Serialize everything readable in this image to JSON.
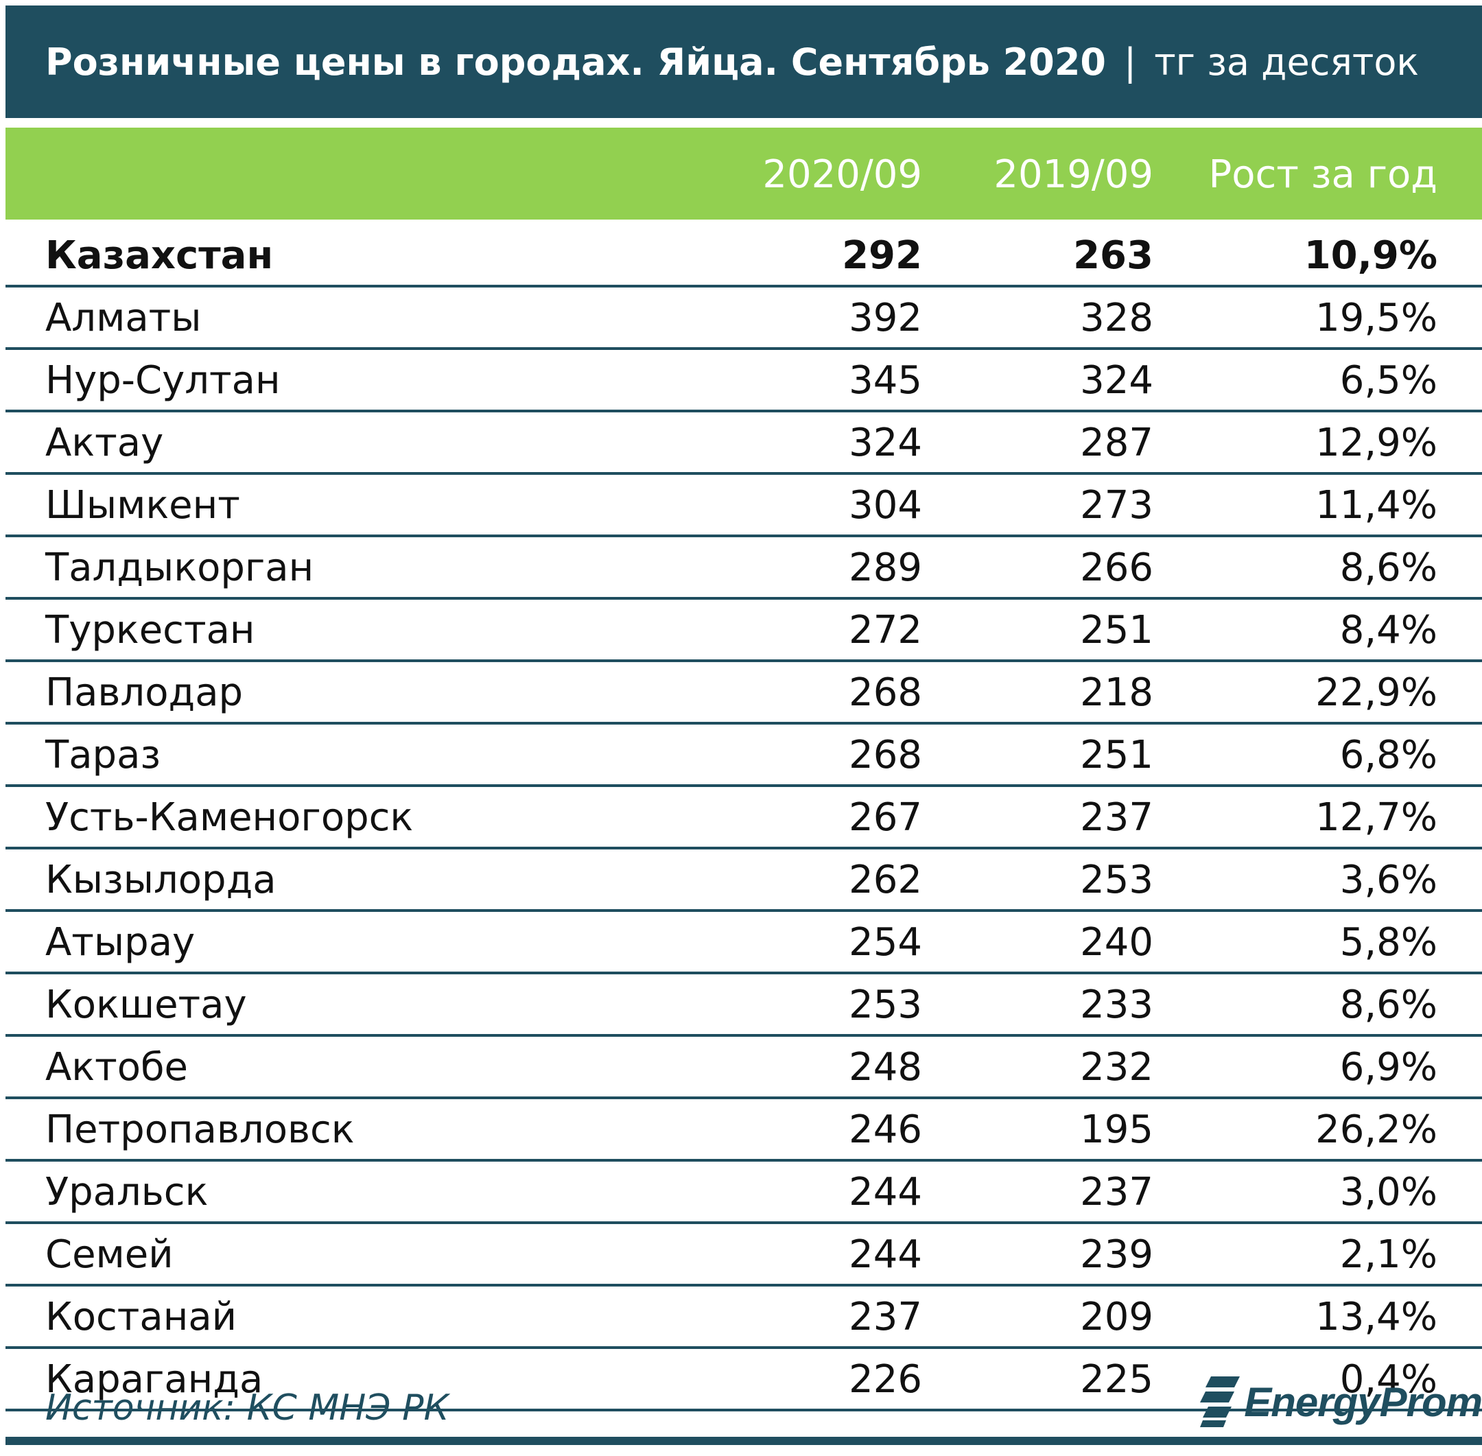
{
  "title": {
    "main": "Розничные цены в городах. Яйца. Сентябрь 2020",
    "separator": "|",
    "unit": "тг за десяток"
  },
  "chart_data": {
    "type": "table",
    "columns": [
      "",
      "2020/09",
      "2019/09",
      "Рост за год"
    ],
    "rows": [
      {
        "city": "Казахстан",
        "v2020": "292",
        "v2019": "263",
        "growth": "10,9%",
        "bold": true
      },
      {
        "city": "Алматы",
        "v2020": "392",
        "v2019": "328",
        "growth": "19,5%"
      },
      {
        "city": "Нур-Султан",
        "v2020": "345",
        "v2019": "324",
        "growth": "6,5%"
      },
      {
        "city": "Актау",
        "v2020": "324",
        "v2019": "287",
        "growth": "12,9%"
      },
      {
        "city": "Шымкент",
        "v2020": "304",
        "v2019": "273",
        "growth": "11,4%"
      },
      {
        "city": "Талдыкорган",
        "v2020": "289",
        "v2019": "266",
        "growth": "8,6%"
      },
      {
        "city": "Туркестан",
        "v2020": "272",
        "v2019": "251",
        "growth": "8,4%"
      },
      {
        "city": "Павлодар",
        "v2020": "268",
        "v2019": "218",
        "growth": "22,9%"
      },
      {
        "city": "Тараз",
        "v2020": "268",
        "v2019": "251",
        "growth": "6,8%"
      },
      {
        "city": "Усть-Каменогорск",
        "v2020": "267",
        "v2019": "237",
        "growth": "12,7%"
      },
      {
        "city": "Кызылорда",
        "v2020": "262",
        "v2019": "253",
        "growth": "3,6%"
      },
      {
        "city": "Атырау",
        "v2020": "254",
        "v2019": "240",
        "growth": "5,8%"
      },
      {
        "city": "Кокшетау",
        "v2020": "253",
        "v2019": "233",
        "growth": "8,6%"
      },
      {
        "city": "Актобе",
        "v2020": "248",
        "v2019": "232",
        "growth": "6,9%"
      },
      {
        "city": "Петропавловск",
        "v2020": "246",
        "v2019": "195",
        "growth": "26,2%"
      },
      {
        "city": "Уральск",
        "v2020": "244",
        "v2019": "237",
        "growth": "3,0%"
      },
      {
        "city": "Семей",
        "v2020": "244",
        "v2019": "239",
        "growth": "2,1%"
      },
      {
        "city": "Костанай",
        "v2020": "237",
        "v2019": "209",
        "growth": "13,4%"
      },
      {
        "city": "Караганда",
        "v2020": "226",
        "v2019": "225",
        "growth": "0,4%"
      }
    ]
  },
  "footer": {
    "source": "Источник: КС МНЭ РК",
    "logo_text": "EnergyProm",
    "logo_icon": "energyprom-logo-icon"
  },
  "colors": {
    "title_bg": "#1f4e5f",
    "header_bg": "#92d050",
    "row_border": "#1f4e5f"
  }
}
